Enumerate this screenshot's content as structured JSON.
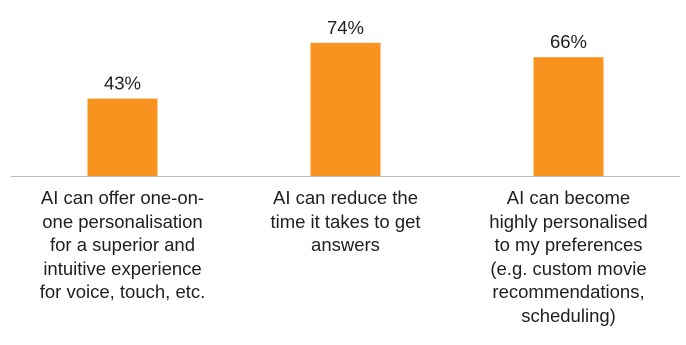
{
  "chart_data": {
    "type": "bar",
    "categories": [
      [
        "AI can offer one-on-",
        "one personalisation",
        "for a superior and",
        "intuitive experience",
        "for voice, touch, etc."
      ],
      [
        "AI can reduce the",
        "time it takes to get",
        "answers"
      ],
      [
        "AI can become",
        "highly personalised",
        "to my preferences",
        "(e.g. custom movie",
        "recommendations,",
        "scheduling)"
      ]
    ],
    "values": [
      43,
      74,
      66
    ],
    "value_labels": [
      "43%",
      "74%",
      "66%"
    ],
    "unit": "%",
    "ylim": [
      0,
      100
    ],
    "grid": false,
    "legend": "none",
    "bar_color": "#F7931E",
    "axis_color": "#bfbfbf",
    "text_color": "#1f1f1f"
  }
}
